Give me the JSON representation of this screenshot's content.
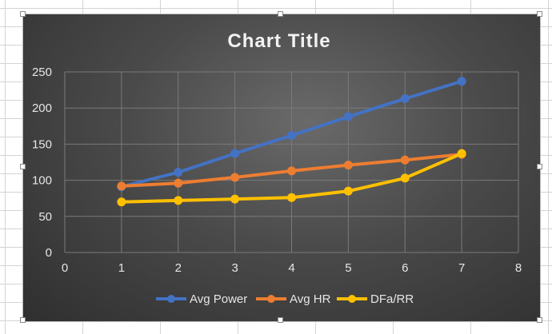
{
  "chart_data": {
    "type": "scatter",
    "title": "Chart Title",
    "xlabel": "",
    "ylabel": "",
    "xlim": [
      0,
      8
    ],
    "ylim": [
      0,
      250
    ],
    "x_ticks": [
      0,
      1,
      2,
      3,
      4,
      5,
      6,
      7,
      8
    ],
    "y_ticks": [
      0,
      50,
      100,
      150,
      200,
      250
    ],
    "grid": true,
    "legend_position": "bottom",
    "series": [
      {
        "name": "Avg Power",
        "color": "#4472c4",
        "x": [
          1,
          2,
          3,
          4,
          5,
          6,
          7
        ],
        "y": [
          91,
          111,
          137,
          162,
          188,
          213,
          237
        ]
      },
      {
        "name": "Avg HR",
        "color": "#ed7d31",
        "x": [
          1,
          2,
          3,
          4,
          5,
          6,
          7
        ],
        "y": [
          92,
          96,
          104,
          113,
          121,
          128,
          136
        ]
      },
      {
        "name": "DFa/RR",
        "color": "#ffc000",
        "x": [
          1,
          2,
          3,
          4,
          5,
          6,
          7
        ],
        "y": [
          70,
          72,
          74,
          76,
          85,
          103,
          137
        ]
      }
    ]
  }
}
